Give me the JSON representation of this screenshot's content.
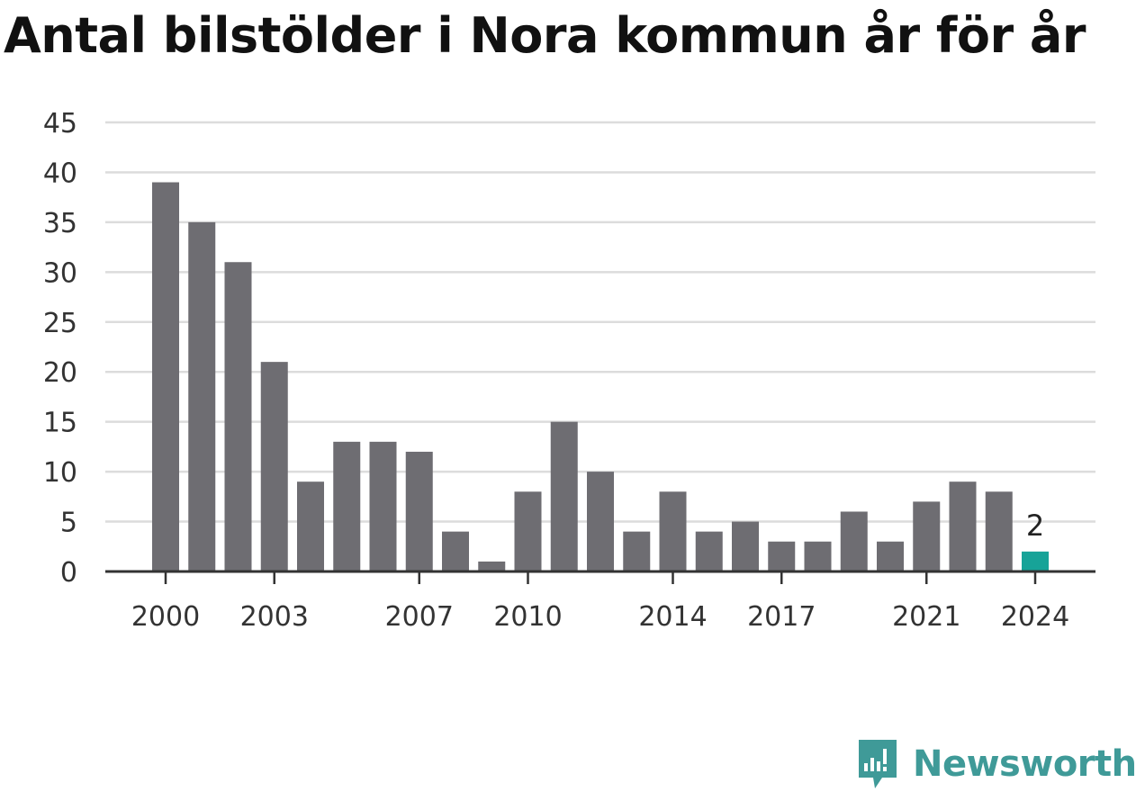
{
  "chart_data": {
    "type": "bar",
    "title": "Antal bilstölder i Nora kommun år för år",
    "categories": [
      "2000",
      "2001",
      "2002",
      "2003",
      "2004",
      "2005",
      "2006",
      "2007",
      "2008",
      "2009",
      "2010",
      "2011",
      "2012",
      "2013",
      "2014",
      "2015",
      "2016",
      "2017",
      "2018",
      "2019",
      "2020",
      "2021",
      "2022",
      "2023",
      "2024"
    ],
    "values": [
      39,
      35,
      31,
      21,
      9,
      13,
      13,
      12,
      4,
      1,
      8,
      15,
      10,
      4,
      8,
      4,
      5,
      3,
      3,
      6,
      3,
      7,
      9,
      8,
      2
    ],
    "x_tick_labels": [
      "2000",
      "2003",
      "2007",
      "2010",
      "2014",
      "2017",
      "2021",
      "2024"
    ],
    "y_ticks": [
      0,
      5,
      10,
      15,
      20,
      25,
      30,
      35,
      40,
      45
    ],
    "ylim": [
      0,
      45
    ],
    "xlabel": "",
    "ylabel": "",
    "grid": true,
    "highlight": {
      "category": "2024",
      "label": "2",
      "color": "#17a398"
    },
    "bar_color": "#6e6d72"
  },
  "brand": {
    "name": "Newsworthy",
    "color": "#3f9a98",
    "icon": "newsworthy-logo-icon"
  }
}
